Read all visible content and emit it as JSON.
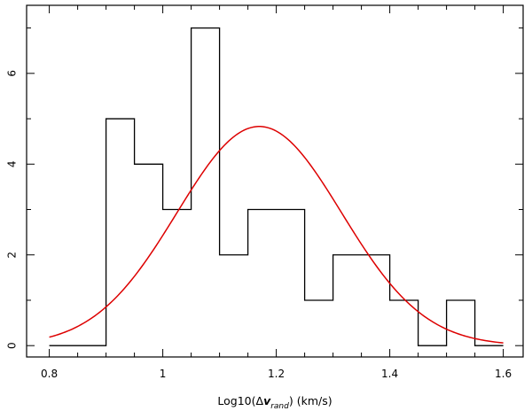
{
  "chart_data": {
    "type": "histogram",
    "title": "",
    "xlabel_parts": {
      "prefix": "Log10(",
      "delta": "Δ",
      "v": "v",
      "subscript": "rand",
      "suffix": ") (km/s)"
    },
    "ylabel": "",
    "xlim": [
      0.76,
      1.635
    ],
    "ylim": [
      -0.25,
      7.5
    ],
    "x_ticks": [
      0.8,
      1.0,
      1.2,
      1.4,
      1.6
    ],
    "x_tick_labels": [
      "0.8",
      "1",
      "1.2",
      "1.4",
      "1.6"
    ],
    "y_ticks": [
      0,
      2,
      4,
      6
    ],
    "y_tick_labels": [
      "0",
      "2",
      "4",
      "6"
    ],
    "grid": false,
    "legend": "none",
    "series": [
      {
        "kind": "step",
        "color": "#000000",
        "bin_edges": [
          0.8,
          0.85,
          0.9,
          0.95,
          1.0,
          1.05,
          1.1,
          1.15,
          1.2,
          1.25,
          1.3,
          1.35,
          1.4,
          1.45,
          1.5,
          1.55,
          1.6
        ],
        "counts": [
          0,
          0,
          5,
          4,
          3,
          7,
          2,
          3,
          3,
          1,
          2,
          2,
          1,
          0,
          1,
          0
        ]
      },
      {
        "kind": "gaussian-fit",
        "color": "#dd0000",
        "mean": 1.17,
        "sigma": 0.145,
        "peak": 4.83,
        "x_range": [
          0.8,
          1.6
        ]
      }
    ]
  }
}
